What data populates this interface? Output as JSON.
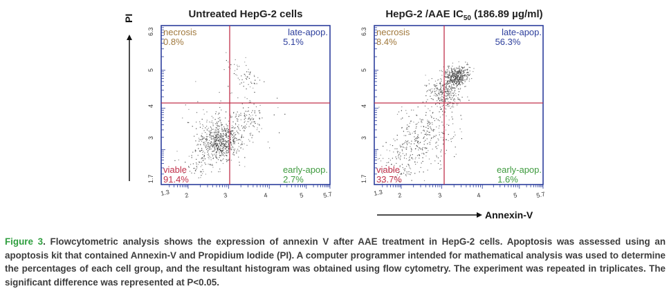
{
  "chart_data": [
    {
      "type": "scatter",
      "title": "Untreated HepG-2 cells",
      "xlabel": "Annexin-V",
      "ylabel": "PI",
      "x_scale": "log",
      "y_scale": "log",
      "xlim": [
        1.3,
        5.7
      ],
      "ylim": [
        1.7,
        6.3
      ],
      "x_tick_labels": [
        "1.3",
        "2",
        "3",
        "4",
        "5",
        "5.7"
      ],
      "y_tick_labels": [
        "1.7",
        "3",
        "4",
        "5",
        "6.3"
      ],
      "quadrant_gate": {
        "x": 3.0,
        "y": 4.0
      },
      "quadrants": [
        {
          "name": "necrosis",
          "value": "0.8%",
          "color": "#a0783c"
        },
        {
          "name": "late-apop.",
          "value": "5.1%",
          "color": "#2c3e9c"
        },
        {
          "name": "viable",
          "value": "91.4%",
          "color": "#c0304a"
        },
        {
          "name": "early-apop.",
          "value": "2.7%",
          "color": "#3e9a3e"
        }
      ]
    },
    {
      "type": "scatter",
      "title_main": "HepG-2 /AAE IC",
      "title_sub": "50",
      "title_rest": " (186.89 µg/ml)",
      "xlabel": "Annexin-V",
      "ylabel": "PI",
      "x_scale": "log",
      "y_scale": "log",
      "xlim": [
        1.3,
        5.7
      ],
      "ylim": [
        1.7,
        6.3
      ],
      "x_tick_labels": [
        "1.3",
        "2",
        "3",
        "4",
        "5",
        "5.7"
      ],
      "y_tick_labels": [
        "1.7",
        "3",
        "4",
        "5",
        "6.3"
      ],
      "quadrant_gate": {
        "x": 3.0,
        "y": 4.0
      },
      "quadrants": [
        {
          "name": "necrosis",
          "value": "8.4%",
          "color": "#a0783c"
        },
        {
          "name": "late-apop.",
          "value": "56.3%",
          "color": "#2c3e9c"
        },
        {
          "name": "viable",
          "value": "33.7%",
          "color": "#c0304a"
        },
        {
          "name": "early-apop.",
          "value": "1.6%",
          "color": "#3e9a3e"
        }
      ]
    }
  ],
  "caption": {
    "label": "Figure 3",
    "text": ". Flowcytometric analysis shows the expression of annexin V after AAE treatment in HepG-2 cells. Apoptosis was assessed using an apoptosis kit that contained Annexin-V and Propidium Iodide (PI). A computer programmer intended for mathematical analysis was used to determine the percentages of each cell group, and the resultant histogram was obtained using flow cytometry. The experiment was repeated in triplicates. The significant difference was represented at P<0.05."
  },
  "colors": {
    "frame": "#2c3e9c",
    "gate": "#c0304a",
    "dots": "#333333",
    "caption_label": "#2e9e3e"
  }
}
